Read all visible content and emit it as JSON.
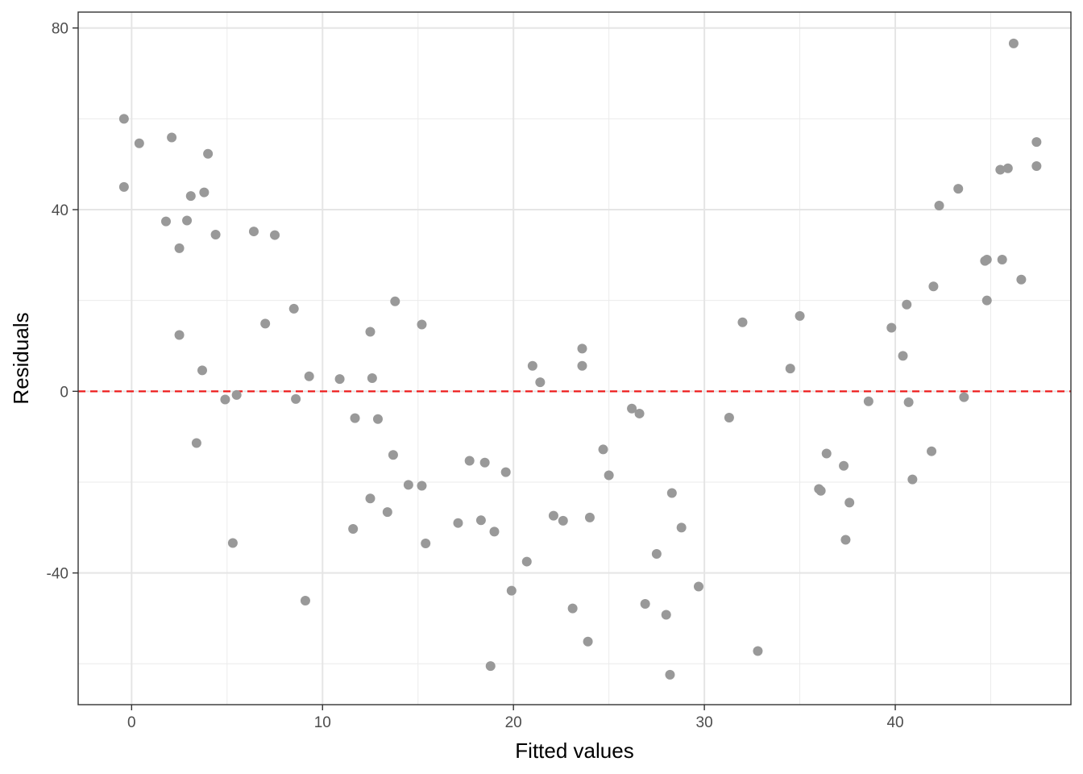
{
  "chart_data": {
    "type": "scatter",
    "xlabel": "Fitted values",
    "ylabel": "Residuals",
    "xlim": [
      -2.8,
      49.2
    ],
    "ylim": [
      -69,
      83.5
    ],
    "x_ticks": [
      0,
      10,
      20,
      30,
      40
    ],
    "x_tick_labels": [
      "0",
      "10",
      "20",
      "30",
      "40"
    ],
    "y_ticks": [
      -40,
      0,
      40,
      80
    ],
    "y_tick_labels": [
      "-40",
      "0",
      "40",
      "80"
    ],
    "grid": true,
    "reference_line": {
      "y": 0,
      "style": "dashed",
      "color": "#ee1c1c"
    },
    "point_color": "#999999",
    "points": [
      {
        "x": -0.4,
        "y": 60.0
      },
      {
        "x": 0.4,
        "y": 54.6
      },
      {
        "x": -0.4,
        "y": 45.0
      },
      {
        "x": 2.1,
        "y": 55.9
      },
      {
        "x": 4.0,
        "y": 52.3
      },
      {
        "x": 3.1,
        "y": 43.0
      },
      {
        "x": 3.8,
        "y": 43.8
      },
      {
        "x": 1.8,
        "y": 37.4
      },
      {
        "x": 2.9,
        "y": 37.6
      },
      {
        "x": 4.4,
        "y": 34.5
      },
      {
        "x": 2.5,
        "y": 31.5
      },
      {
        "x": 6.4,
        "y": 35.2
      },
      {
        "x": 7.5,
        "y": 34.4
      },
      {
        "x": 2.5,
        "y": 12.4
      },
      {
        "x": 3.7,
        "y": 4.6
      },
      {
        "x": 3.4,
        "y": -11.4
      },
      {
        "x": 4.9,
        "y": -1.8
      },
      {
        "x": 5.5,
        "y": -0.8
      },
      {
        "x": 5.3,
        "y": -33.4
      },
      {
        "x": 7.0,
        "y": 14.9
      },
      {
        "x": 8.5,
        "y": 18.2
      },
      {
        "x": 8.6,
        "y": -1.7
      },
      {
        "x": 9.3,
        "y": 3.3
      },
      {
        "x": 9.1,
        "y": -46.1
      },
      {
        "x": 10.9,
        "y": 2.7
      },
      {
        "x": 11.7,
        "y": -5.9
      },
      {
        "x": 11.6,
        "y": -30.3
      },
      {
        "x": 12.5,
        "y": 13.1
      },
      {
        "x": 12.6,
        "y": 2.9
      },
      {
        "x": 12.9,
        "y": -6.1
      },
      {
        "x": 12.5,
        "y": -23.6
      },
      {
        "x": 13.4,
        "y": -26.6
      },
      {
        "x": 13.8,
        "y": 19.8
      },
      {
        "x": 13.7,
        "y": -14.0
      },
      {
        "x": 14.5,
        "y": -20.6
      },
      {
        "x": 15.2,
        "y": 14.7
      },
      {
        "x": 15.2,
        "y": -20.8
      },
      {
        "x": 15.4,
        "y": -33.5
      },
      {
        "x": 17.1,
        "y": -29.0
      },
      {
        "x": 17.7,
        "y": -15.3
      },
      {
        "x": 18.3,
        "y": -28.4
      },
      {
        "x": 18.5,
        "y": -15.7
      },
      {
        "x": 19.0,
        "y": -30.9
      },
      {
        "x": 18.8,
        "y": -60.5
      },
      {
        "x": 19.6,
        "y": -17.8
      },
      {
        "x": 19.9,
        "y": -43.9
      },
      {
        "x": 20.7,
        "y": -37.5
      },
      {
        "x": 21.0,
        "y": 5.6
      },
      {
        "x": 21.4,
        "y": 2.0
      },
      {
        "x": 22.1,
        "y": -27.4
      },
      {
        "x": 22.6,
        "y": -28.5
      },
      {
        "x": 23.1,
        "y": -47.8
      },
      {
        "x": 23.6,
        "y": 9.4
      },
      {
        "x": 23.6,
        "y": 5.6
      },
      {
        "x": 24.0,
        "y": -27.8
      },
      {
        "x": 23.9,
        "y": -55.1
      },
      {
        "x": 24.7,
        "y": -12.8
      },
      {
        "x": 25.0,
        "y": -18.5
      },
      {
        "x": 26.2,
        "y": -3.8
      },
      {
        "x": 26.6,
        "y": -4.9
      },
      {
        "x": 26.9,
        "y": -46.8
      },
      {
        "x": 27.5,
        "y": -35.8
      },
      {
        "x": 28.0,
        "y": -49.2
      },
      {
        "x": 28.2,
        "y": -62.4
      },
      {
        "x": 28.3,
        "y": -22.4
      },
      {
        "x": 28.8,
        "y": -30.0
      },
      {
        "x": 29.7,
        "y": -43.0
      },
      {
        "x": 31.3,
        "y": -5.8
      },
      {
        "x": 32.0,
        "y": 15.2
      },
      {
        "x": 32.8,
        "y": -57.2
      },
      {
        "x": 34.5,
        "y": 5.0
      },
      {
        "x": 35.0,
        "y": 16.6
      },
      {
        "x": 36.0,
        "y": -21.5
      },
      {
        "x": 36.1,
        "y": -21.9
      },
      {
        "x": 36.4,
        "y": -13.7
      },
      {
        "x": 37.3,
        "y": -16.4
      },
      {
        "x": 37.4,
        "y": -32.7
      },
      {
        "x": 37.6,
        "y": -24.5
      },
      {
        "x": 38.6,
        "y": -2.2
      },
      {
        "x": 39.8,
        "y": 14.0
      },
      {
        "x": 40.4,
        "y": 7.8
      },
      {
        "x": 40.6,
        "y": 19.1
      },
      {
        "x": 40.7,
        "y": -2.4
      },
      {
        "x": 40.9,
        "y": -19.4
      },
      {
        "x": 42.0,
        "y": 23.1
      },
      {
        "x": 41.9,
        "y": -13.2
      },
      {
        "x": 42.3,
        "y": 40.9
      },
      {
        "x": 43.3,
        "y": 44.6
      },
      {
        "x": 43.6,
        "y": -1.3
      },
      {
        "x": 44.7,
        "y": 28.7
      },
      {
        "x": 44.8,
        "y": 29.0
      },
      {
        "x": 44.8,
        "y": 20.0
      },
      {
        "x": 45.5,
        "y": 48.8
      },
      {
        "x": 45.6,
        "y": 29.0
      },
      {
        "x": 45.9,
        "y": 49.1
      },
      {
        "x": 46.2,
        "y": 76.6
      },
      {
        "x": 46.6,
        "y": 24.6
      },
      {
        "x": 47.4,
        "y": 54.9
      },
      {
        "x": 47.4,
        "y": 49.6
      }
    ]
  }
}
